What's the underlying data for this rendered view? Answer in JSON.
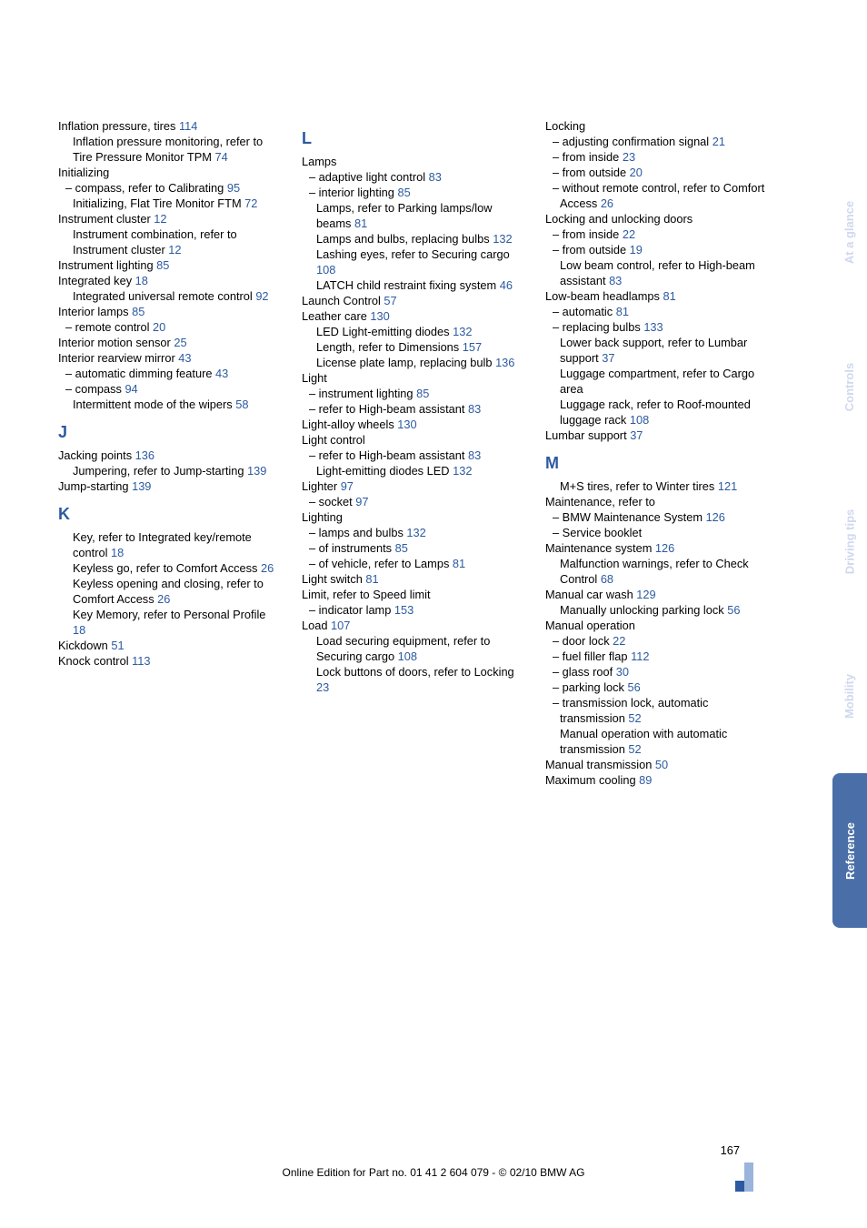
{
  "sideTabs": [
    {
      "label": "At a glance",
      "bg": "",
      "cls": "tab-faded"
    },
    {
      "label": "Controls",
      "bg": "",
      "cls": "tab-faded"
    },
    {
      "label": "Driving tips",
      "bg": "",
      "cls": "tab-faded"
    },
    {
      "label": "Mobility",
      "bg": "",
      "cls": "tab-faded"
    },
    {
      "label": "Reference",
      "bg": "#4a6ea8",
      "cls": "tab-dark"
    }
  ],
  "pageNum": "167",
  "footer": "Online Edition for Part no. 01 41 2 604 079 - © 02/10 BMW AG",
  "col1": [
    {
      "t": "Inflation pressure, tires ",
      "p": "114"
    },
    {
      "t": "Inflation pressure monitoring, refer to Tire Pressure Monitor TPM ",
      "p": "74",
      "cls": "ind2"
    },
    {
      "t": "Initializing"
    },
    {
      "t": "– compass, refer to Calibrating ",
      "p": "95",
      "cls": "ind"
    },
    {
      "t": "Initializing, Flat Tire Monitor FTM ",
      "p": "72",
      "cls": "ind2"
    },
    {
      "t": "Instrument cluster ",
      "p": "12"
    },
    {
      "t": "Instrument combination, refer to Instrument cluster ",
      "p": "12",
      "cls": "ind2"
    },
    {
      "t": "Instrument lighting ",
      "p": "85"
    },
    {
      "t": "Integrated key ",
      "p": "18"
    },
    {
      "t": "Integrated universal remote control ",
      "p": "92",
      "cls": "ind2"
    },
    {
      "t": "Interior lamps ",
      "p": "85"
    },
    {
      "t": "– remote control ",
      "p": "20",
      "cls": "ind"
    },
    {
      "t": "Interior motion sensor ",
      "p": "25"
    },
    {
      "t": "Interior rearview mirror ",
      "p": "43"
    },
    {
      "t": "– automatic dimming feature ",
      "p": "43",
      "cls": "ind"
    },
    {
      "t": "– compass ",
      "p": "94",
      "cls": "ind"
    },
    {
      "t": "Intermittent mode of the wipers ",
      "p": "58",
      "cls": "ind2"
    },
    {
      "h": "J"
    },
    {
      "t": "Jacking points ",
      "p": "136"
    },
    {
      "t": "Jumpering, refer to Jump-starting ",
      "p": "139",
      "cls": "ind2"
    },
    {
      "t": "Jump-starting ",
      "p": "139"
    },
    {
      "h": "K"
    },
    {
      "t": "Key, refer to Integrated key/remote control ",
      "p": "18",
      "cls": "ind2"
    },
    {
      "t": "Keyless go, refer to Comfort Access ",
      "p": "26",
      "cls": "ind2"
    },
    {
      "t": "Keyless opening and closing, refer to Comfort Access ",
      "p": "26",
      "cls": "ind2"
    },
    {
      "t": "Key Memory, refer to Personal Profile ",
      "p": "18",
      "cls": "ind2"
    },
    {
      "t": "Kickdown ",
      "p": "51"
    },
    {
      "t": "Knock control ",
      "p": "113"
    }
  ],
  "col2": [
    {
      "h": "L"
    },
    {
      "t": "Lamps"
    },
    {
      "t": "– adaptive light control ",
      "p": "83",
      "cls": "ind"
    },
    {
      "t": "– interior lighting ",
      "p": "85",
      "cls": "ind"
    },
    {
      "t": "Lamps, refer to Parking lamps/low beams ",
      "p": "81",
      "cls": "ind2"
    },
    {
      "t": "Lamps and bulbs, replacing bulbs ",
      "p": "132",
      "cls": "ind2"
    },
    {
      "t": "Lashing eyes, refer to Securing cargo ",
      "p": "108",
      "cls": "ind2"
    },
    {
      "t": "LATCH child restraint fixing system ",
      "p": "46",
      "cls": "ind2"
    },
    {
      "t": "Launch Control ",
      "p": "57"
    },
    {
      "t": "Leather care ",
      "p": "130"
    },
    {
      "t": "LED Light-emitting diodes ",
      "p": "132",
      "cls": "ind2"
    },
    {
      "t": "Length, refer to Dimensions ",
      "p": "157",
      "cls": "ind2"
    },
    {
      "t": "License plate lamp, replacing bulb ",
      "p": "136",
      "cls": "ind2"
    },
    {
      "t": "Light"
    },
    {
      "t": "– instrument lighting ",
      "p": "85",
      "cls": "ind"
    },
    {
      "t": "– refer to High-beam assistant ",
      "p": "83",
      "cls": "ind"
    },
    {
      "t": "Light-alloy wheels ",
      "p": "130"
    },
    {
      "t": "Light control"
    },
    {
      "t": "– refer to High-beam assistant ",
      "p": "83",
      "cls": "ind"
    },
    {
      "t": "Light-emitting diodes LED ",
      "p": "132",
      "cls": "ind2"
    },
    {
      "t": "Lighter ",
      "p": "97"
    },
    {
      "t": "– socket ",
      "p": "97",
      "cls": "ind"
    },
    {
      "t": "Lighting"
    },
    {
      "t": "– lamps and bulbs ",
      "p": "132",
      "cls": "ind"
    },
    {
      "t": "– of instruments ",
      "p": "85",
      "cls": "ind"
    },
    {
      "t": "– of vehicle, refer to Lamps ",
      "p": "81",
      "cls": "ind"
    },
    {
      "t": "Light switch ",
      "p": "81"
    },
    {
      "t": "Limit, refer to Speed limit"
    },
    {
      "t": "– indicator lamp ",
      "p": "153",
      "cls": "ind"
    },
    {
      "t": "Load ",
      "p": "107"
    },
    {
      "t": "Load securing equipment, refer to Securing cargo ",
      "p": "108",
      "cls": "ind2"
    },
    {
      "t": "Lock buttons of doors, refer to Locking ",
      "p": "23",
      "cls": "ind2"
    }
  ],
  "col3": [
    {
      "t": "Locking"
    },
    {
      "t": "– adjusting confirmation signal ",
      "p": "21",
      "cls": "ind"
    },
    {
      "t": "– from inside ",
      "p": "23",
      "cls": "ind"
    },
    {
      "t": "– from outside ",
      "p": "20",
      "cls": "ind"
    },
    {
      "t": "– without remote control, refer to Comfort Access ",
      "p": "26",
      "cls": "ind"
    },
    {
      "t": "Locking and unlocking doors"
    },
    {
      "t": "– from inside ",
      "p": "22",
      "cls": "ind"
    },
    {
      "t": "– from outside ",
      "p": "19",
      "cls": "ind"
    },
    {
      "t": "Low beam control, refer to High-beam assistant ",
      "p": "83",
      "cls": "ind2"
    },
    {
      "t": "Low-beam headlamps ",
      "p": "81"
    },
    {
      "t": "– automatic ",
      "p": "81",
      "cls": "ind"
    },
    {
      "t": "– replacing bulbs ",
      "p": "133",
      "cls": "ind"
    },
    {
      "t": "Lower back support, refer to Lumbar support ",
      "p": "37",
      "cls": "ind2"
    },
    {
      "t": "Luggage compartment, refer to Cargo area",
      "cls": "ind2"
    },
    {
      "t": "Luggage rack, refer to Roof-mounted luggage rack ",
      "p": "108",
      "cls": "ind2"
    },
    {
      "t": "Lumbar support ",
      "p": "37"
    },
    {
      "h": "M"
    },
    {
      "t": "M+S tires, refer to Winter tires ",
      "p": "121",
      "cls": "ind2"
    },
    {
      "t": "Maintenance, refer to"
    },
    {
      "t": "– BMW Maintenance System ",
      "p": "126",
      "cls": "ind"
    },
    {
      "t": "– Service booklet",
      "cls": "ind"
    },
    {
      "t": "Maintenance system ",
      "p": "126"
    },
    {
      "t": "Malfunction warnings, refer to Check Control ",
      "p": "68",
      "cls": "ind2"
    },
    {
      "t": "Manual car wash ",
      "p": "129"
    },
    {
      "t": "Manually unlocking parking lock ",
      "p": "56",
      "cls": "ind2"
    },
    {
      "t": "Manual operation"
    },
    {
      "t": "– door lock ",
      "p": "22",
      "cls": "ind"
    },
    {
      "t": "– fuel filler flap ",
      "p": "112",
      "cls": "ind"
    },
    {
      "t": "– glass roof ",
      "p": "30",
      "cls": "ind"
    },
    {
      "t": "– parking lock ",
      "p": "56",
      "cls": "ind"
    },
    {
      "t": "– transmission lock, automatic transmission ",
      "p": "52",
      "cls": "ind"
    },
    {
      "t": "Manual operation with automatic transmission ",
      "p": "52",
      "cls": "ind2"
    },
    {
      "t": "Manual transmission ",
      "p": "50"
    },
    {
      "t": "Maximum cooling ",
      "p": "89"
    }
  ]
}
